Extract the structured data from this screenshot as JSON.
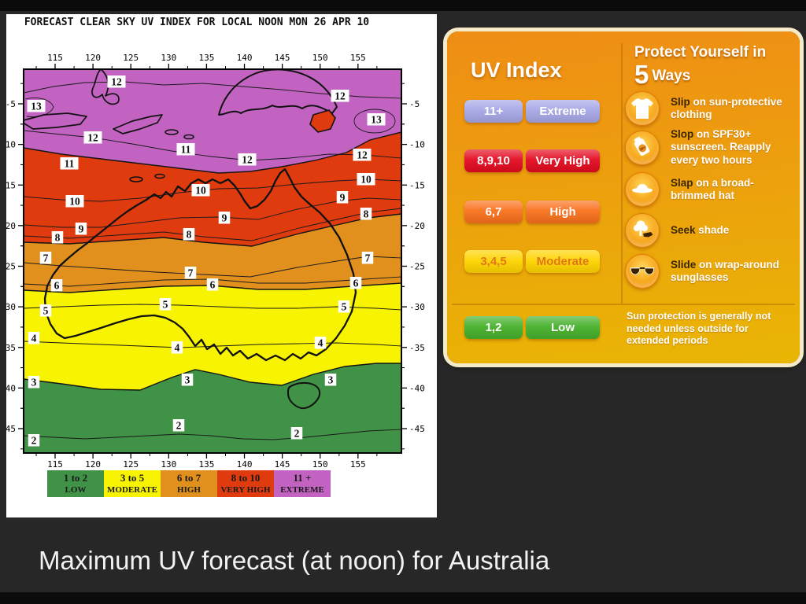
{
  "slide": {
    "caption": "Maximum UV forecast (at noon) for Australia"
  },
  "chart_data": {
    "type": "contour-map",
    "title": "FORECAST CLEAR SKY UV INDEX FOR LOCAL NOON MON 26 APR 10",
    "region": "Australia",
    "x_ticks": [
      115,
      120,
      125,
      130,
      135,
      140,
      145,
      150,
      155
    ],
    "y_ticks": [
      -5,
      -10,
      -15,
      -20,
      -25,
      -30,
      -35,
      -40,
      -45
    ],
    "grid": false,
    "legend_position": "bottom",
    "uv_bands": [
      {
        "range": "1 to 2",
        "label": "LOW",
        "color": "#3f9246"
      },
      {
        "range": "3 to 5",
        "label": "MODERATE",
        "color": "#f8f300"
      },
      {
        "range": "6 to 7",
        "label": "HIGH",
        "color": "#e1901d"
      },
      {
        "range": "8 to 10",
        "label": "VERY HIGH",
        "color": "#df3b0e"
      },
      {
        "range": "11 +",
        "label": "EXTREME",
        "color": "#c263c2"
      }
    ],
    "contour_labels": [
      {
        "v": "12",
        "x": 140,
        "y": 86
      },
      {
        "v": "12",
        "x": 424,
        "y": 104
      },
      {
        "v": "13",
        "x": 38,
        "y": 117
      },
      {
        "v": "13",
        "x": 470,
        "y": 134
      },
      {
        "v": "12",
        "x": 110,
        "y": 157
      },
      {
        "v": "11",
        "x": 228,
        "y": 172
      },
      {
        "v": "12",
        "x": 452,
        "y": 179
      },
      {
        "v": "12",
        "x": 306,
        "y": 185
      },
      {
        "v": "11",
        "x": 80,
        "y": 190
      },
      {
        "v": "10",
        "x": 457,
        "y": 210
      },
      {
        "v": "10",
        "x": 247,
        "y": 224
      },
      {
        "v": "10",
        "x": 87,
        "y": 238
      },
      {
        "v": "9",
        "x": 427,
        "y": 233
      },
      {
        "v": "9",
        "x": 277,
        "y": 259
      },
      {
        "v": "9",
        "x": 95,
        "y": 273
      },
      {
        "v": "8",
        "x": 457,
        "y": 254
      },
      {
        "v": "8",
        "x": 232,
        "y": 280
      },
      {
        "v": "8",
        "x": 65,
        "y": 284
      },
      {
        "v": "7",
        "x": 459,
        "y": 310
      },
      {
        "v": "7",
        "x": 234,
        "y": 329
      },
      {
        "v": "7",
        "x": 50,
        "y": 310
      },
      {
        "v": "6",
        "x": 444,
        "y": 342
      },
      {
        "v": "6",
        "x": 262,
        "y": 344
      },
      {
        "v": "6",
        "x": 64,
        "y": 345
      },
      {
        "v": "5",
        "x": 202,
        "y": 369
      },
      {
        "v": "5",
        "x": 429,
        "y": 372
      },
      {
        "v": "5",
        "x": 50,
        "y": 377
      },
      {
        "v": "4",
        "x": 35,
        "y": 412
      },
      {
        "v": "4",
        "x": 399,
        "y": 418
      },
      {
        "v": "4",
        "x": 217,
        "y": 424
      },
      {
        "v": "3",
        "x": 230,
        "y": 465
      },
      {
        "v": "3",
        "x": 412,
        "y": 465
      },
      {
        "v": "3",
        "x": 35,
        "y": 468
      },
      {
        "v": "2",
        "x": 219,
        "y": 523
      },
      {
        "v": "2",
        "x": 369,
        "y": 533
      },
      {
        "v": "2",
        "x": 35,
        "y": 542
      }
    ]
  },
  "uv_card": {
    "title": "UV Index",
    "colors": {
      "bg_top": "#ef8d15",
      "bg_bottom": "#e9b604",
      "frame": "#f5ebc9"
    },
    "scale": [
      {
        "numbers": "11+",
        "label": "Extreme",
        "color": "#a7a7e6",
        "text_color": "#ffffff"
      },
      {
        "numbers": "8,9,10",
        "label": "Very High",
        "color": "#e30b20",
        "text_color": "#ffffff"
      },
      {
        "numbers": "6,7",
        "label": "High",
        "color": "#f9711d",
        "text_color": "#ffffff"
      },
      {
        "numbers": "3,4,5",
        "label": "Moderate",
        "color": "#ffd400",
        "text_color": "#e2761a"
      },
      {
        "numbers": "1,2",
        "label": "Low",
        "color": "#46b12b",
        "text_color": "#ffffff"
      }
    ],
    "protect": {
      "heading_line1": "Protect Yourself in",
      "heading_number": "5",
      "heading_word": "Ways",
      "tips": [
        {
          "icon": "shirt-icon",
          "lead": "Slip",
          "rest": " on sun-protective clothing"
        },
        {
          "icon": "sunscreen-icon",
          "lead": "Slop",
          "rest": " on SPF30+ sunscreen. Reapply every two hours"
        },
        {
          "icon": "hat-icon",
          "lead": "Slap",
          "rest": " on a broad-brimmed hat"
        },
        {
          "icon": "shade-icon",
          "lead": "Seek",
          "rest": " shade"
        },
        {
          "icon": "sunglasses-icon",
          "lead": "Slide",
          "rest": " on wrap-around sunglasses"
        }
      ],
      "note": "Sun protection is generally not needed unless outside for extended periods"
    }
  }
}
